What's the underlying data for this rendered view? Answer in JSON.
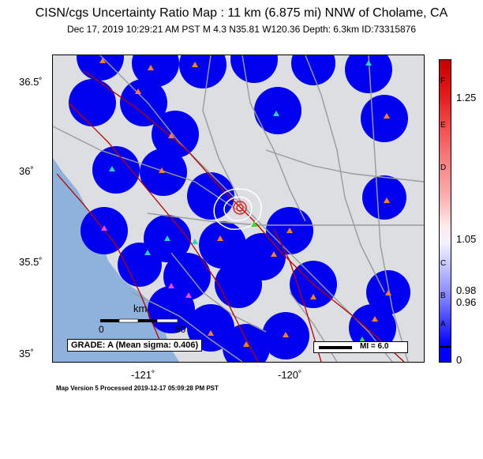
{
  "header": {
    "title": "CISN/cgs Uncertainty Ratio Map : 11 km (6.875 mi) NNW of Cholame, CA",
    "subtitle": "Dec 17, 2019 10:29:21 AM PST   M 4.3   N35.81 W120.36   Depth: 6.3km   ID:73315876"
  },
  "axes": {
    "lat_ticks": [
      "36.5˚",
      "36˚",
      "35.5˚",
      "35˚"
    ],
    "lon_ticks": [
      "-121˚",
      "-120˚"
    ]
  },
  "colorbar": {
    "letters": [
      "F",
      "E",
      "D",
      "C",
      "B",
      "A"
    ],
    "values": [
      "1.25",
      "1.05",
      "0.98",
      "0.96",
      "0"
    ]
  },
  "grade_label": "GRADE: A (Mean sigma: 0.406)",
  "mi_label": "MI = 6.0",
  "scale": {
    "unit": "km",
    "min": "0",
    "max": "50"
  },
  "footer": "Map Version 5 Processed 2019-12-17 05:09:28 PM PST",
  "colors": {
    "ocean": "#8fb2dd",
    "land": "#dddee2",
    "station_circle": "#0000ff",
    "fault": "#b30000",
    "road": "#9a9a9a"
  }
}
